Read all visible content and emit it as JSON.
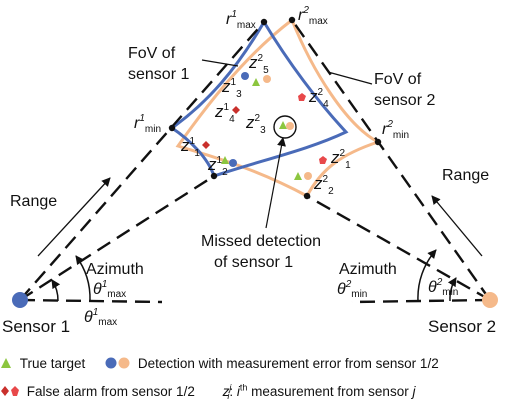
{
  "labels": {
    "r1_max": {
      "base": "r",
      "sup": "1",
      "sub": "max"
    },
    "r2_max": {
      "base": "r",
      "sup": "2",
      "sub": "max"
    },
    "r1_min": {
      "base": "r",
      "sup": "1",
      "sub": "min"
    },
    "r2_min": {
      "base": "r",
      "sup": "2",
      "sub": "min"
    },
    "fov1_line1": "FoV of",
    "fov1_line2": "sensor 1",
    "fov2_line1": "FoV of",
    "fov2_line2": "sensor 2",
    "range_left": "Range",
    "range_right": "Range",
    "azimuth_left": "Azimuth",
    "azimuth_right": "Azimuth",
    "theta1_max_upper": {
      "base": "θ",
      "sup": "1",
      "sub": "max"
    },
    "theta1_max_lower": {
      "base": "θ",
      "sup": "1",
      "sub": "max"
    },
    "theta2_min_left": {
      "base": "θ",
      "sup": "2",
      "sub": "min"
    },
    "theta2_min_right": {
      "base": "θ",
      "sup": "2",
      "sub": "min"
    },
    "missed_line1": "Missed detection",
    "missed_line2": "of sensor 1",
    "sensor1": "Sensor 1",
    "sensor2": "Sensor 2"
  },
  "measurements": {
    "z1_1": {
      "base": "z",
      "sup": "1",
      "sub": "1"
    },
    "z1_2": {
      "base": "z",
      "sup": "1",
      "sub": "2"
    },
    "z1_3": {
      "base": "z",
      "sup": "1",
      "sub": "3"
    },
    "z1_4": {
      "base": "z",
      "sup": "1",
      "sub": "4"
    },
    "z2_1": {
      "base": "z",
      "sup": "2",
      "sub": "1"
    },
    "z2_2": {
      "base": "z",
      "sup": "2",
      "sub": "2"
    },
    "z2_3": {
      "base": "z",
      "sup": "2",
      "sub": "3"
    },
    "z2_4": {
      "base": "z",
      "sup": "2",
      "sub": "4"
    },
    "z2_5": {
      "base": "z",
      "sup": "2",
      "sub": "5"
    }
  },
  "legend": {
    "true_target": "True target",
    "detection": "Detection with measurement error from sensor 1/2",
    "false_alarm": "False alarm from sensor 1/2",
    "notation_base": "z",
    "notation_sup": "j",
    "notation_sub": "i",
    "notation_colon": ":",
    "notation_i": "i",
    "notation_th": "th",
    "notation_text": " measurement from sensor ",
    "notation_j": "j"
  },
  "colors": {
    "sensor1_fov": "#4a6bb8",
    "sensor2_fov": "#f5b98a",
    "sensor1_dot": "#4a6bb8",
    "sensor2_dot": "#f5b98a",
    "true_target": "#8cc63f",
    "false_alarm_1": "#c9302c",
    "false_alarm_2": "#e8484a",
    "line": "#111111"
  }
}
